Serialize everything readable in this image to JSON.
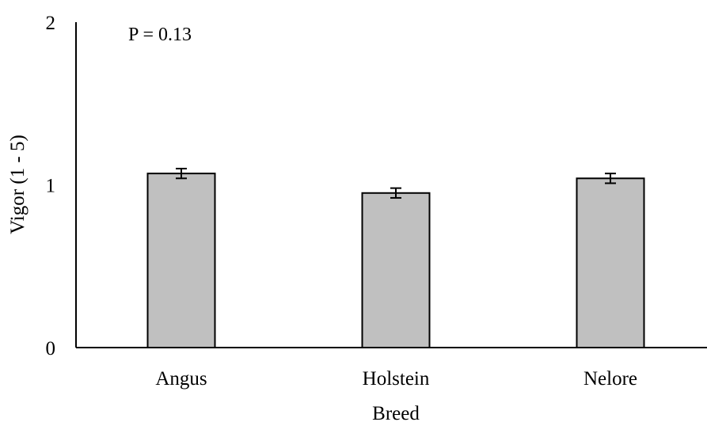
{
  "chart_data": {
    "type": "bar",
    "categories": [
      "Angus",
      "Holstein",
      "Nelore"
    ],
    "values": [
      1.07,
      0.95,
      1.04
    ],
    "errors": [
      0.03,
      0.03,
      0.03
    ],
    "title": "",
    "xlabel": "Breed",
    "ylabel": "Vigor (1 - 5)",
    "ylim": [
      0,
      2
    ],
    "yticks": [
      "0",
      "1",
      "2"
    ],
    "grid": false,
    "legend": "none",
    "annotation": "P = 0.13",
    "colors": {
      "bar_fill": "#c0c0c0",
      "bar_edge": "#000000",
      "axis": "#000000"
    }
  }
}
